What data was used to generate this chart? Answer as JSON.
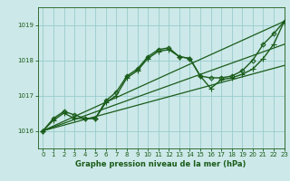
{
  "title": "Graphe pression niveau de la mer (hPa)",
  "background_color": "#cce8e8",
  "grid_color": "#99cccc",
  "line_color": "#1a5c1a",
  "xlim": [
    -0.5,
    23
  ],
  "ylim": [
    1015.5,
    1019.5
  ],
  "yticks": [
    1016,
    1017,
    1018,
    1019
  ],
  "xticks": [
    0,
    1,
    2,
    3,
    4,
    5,
    6,
    7,
    8,
    9,
    10,
    11,
    12,
    13,
    14,
    15,
    16,
    17,
    18,
    19,
    20,
    21,
    22,
    23
  ],
  "series": [
    {
      "x": [
        0,
        1,
        2,
        3,
        4,
        5,
        6,
        7,
        8,
        9,
        10,
        11,
        12,
        13,
        14,
        15,
        16,
        17,
        18,
        19,
        20,
        21,
        22,
        23
      ],
      "y": [
        1016.0,
        1016.35,
        1016.55,
        1016.45,
        1016.35,
        1016.35,
        1016.85,
        1017.1,
        1017.55,
        1017.75,
        1018.1,
        1018.3,
        1018.35,
        1018.1,
        1018.05,
        1017.55,
        1017.5,
        1017.5,
        1017.55,
        1017.7,
        1018.0,
        1018.45,
        1018.75,
        1019.1
      ],
      "marker": "D",
      "markersize": 2.5,
      "linewidth": 1.0
    },
    {
      "x": [
        0,
        23
      ],
      "y": [
        1016.0,
        1019.1
      ],
      "marker": "None",
      "markersize": 0,
      "linewidth": 0.9
    },
    {
      "x": [
        0,
        1,
        2,
        3,
        4,
        5,
        6,
        7,
        8,
        9,
        10,
        11,
        12,
        13,
        14,
        15,
        16,
        17,
        18,
        19,
        20,
        21,
        22,
        23
      ],
      "y": [
        1016.0,
        1016.3,
        1016.5,
        1016.35,
        1016.35,
        1016.35,
        1016.8,
        1017.0,
        1017.5,
        1017.7,
        1018.05,
        1018.25,
        1018.3,
        1018.1,
        1018.05,
        1017.55,
        1017.2,
        1017.45,
        1017.5,
        1017.6,
        1017.75,
        1018.05,
        1018.45,
        1019.1
      ],
      "marker": "+",
      "markersize": 4,
      "linewidth": 1.0
    },
    {
      "x": [
        0,
        23
      ],
      "y": [
        1016.0,
        1017.85
      ],
      "marker": "None",
      "markersize": 0,
      "linewidth": 0.9
    },
    {
      "x": [
        0,
        23
      ],
      "y": [
        1016.0,
        1018.45
      ],
      "marker": "None",
      "markersize": 0,
      "linewidth": 0.9
    }
  ]
}
